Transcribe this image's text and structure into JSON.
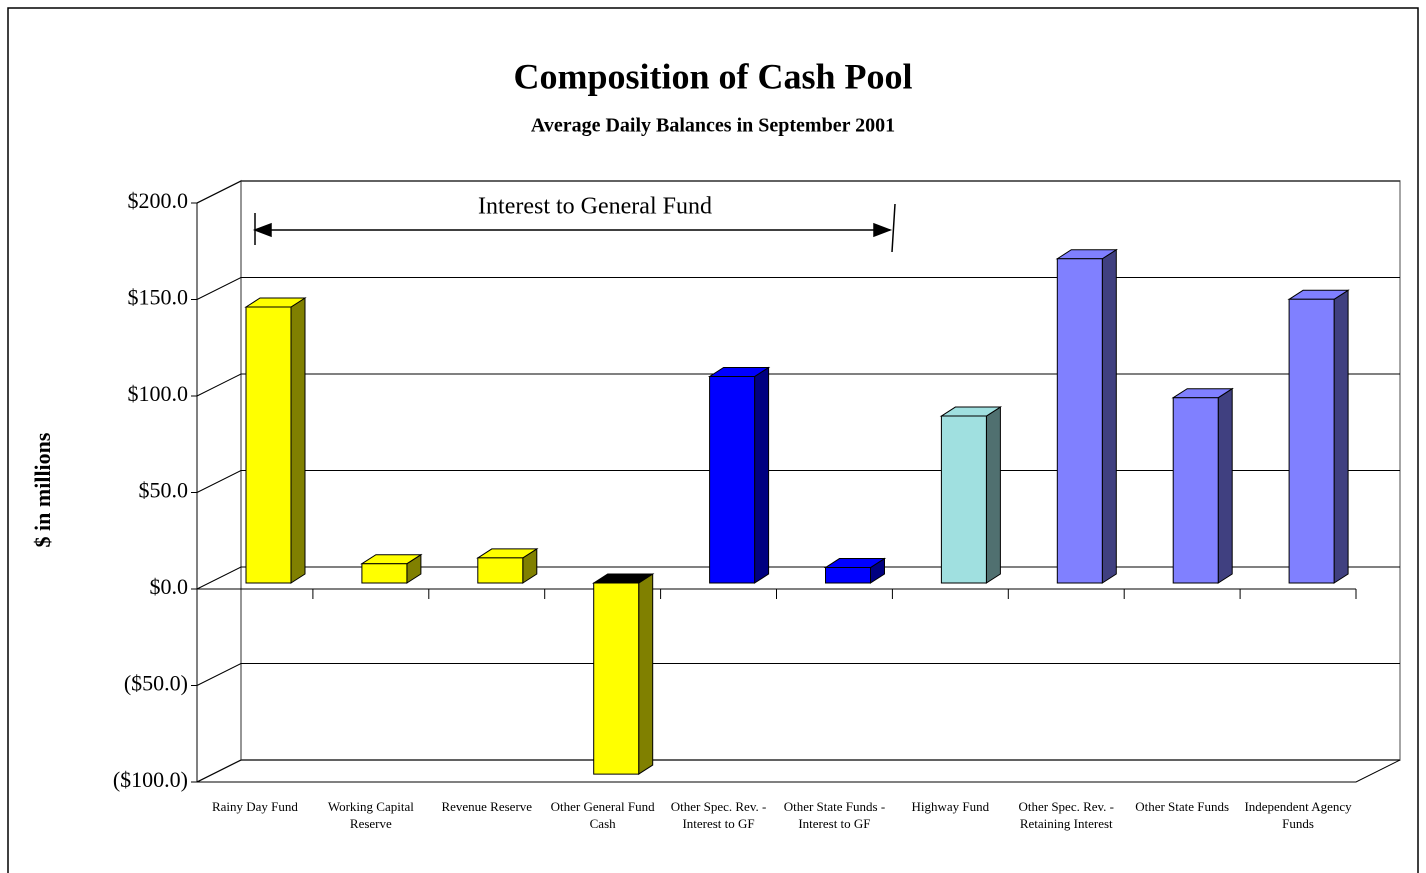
{
  "chart_data": {
    "type": "bar3d",
    "title": "Composition of Cash Pool",
    "subtitle": "Average Daily Balances in September 2001",
    "y_label": "$ in millions",
    "annotation": "Interest to General Fund",
    "categories": [
      "Rainy Day Fund",
      "Working Capital Reserve",
      "Revenue Reserve",
      "Other General Fund Cash",
      "Other Spec. Rev. - Interest to GF",
      "Other State Funds - Interest to GF",
      "Highway Fund",
      "Other Spec. Rev. - Retaining Interest",
      "Other State Funds",
      "Independent Agency Funds"
    ],
    "values": [
      143,
      10,
      13,
      -99,
      107,
      8,
      86.5,
      168,
      96,
      147
    ],
    "colors": [
      "#ffff00",
      "#ffff00",
      "#ffff00",
      "#ffff00",
      "#0000ff",
      "#0000ff",
      "#a0e0e0",
      "#8080ff",
      "#8080ff",
      "#8080ff"
    ],
    "ylim": [
      -100,
      200
    ],
    "yticks": [
      {
        "value": -100,
        "label": "($100.0)"
      },
      {
        "value": -50,
        "label": "($50.0)"
      },
      {
        "value": 0,
        "label": "$0.0"
      },
      {
        "value": 50,
        "label": "$50.0"
      },
      {
        "value": 100,
        "label": "$100.0"
      },
      {
        "value": 150,
        "label": "$150.0"
      },
      {
        "value": 200,
        "label": "$200.0"
      }
    ],
    "grid": true
  }
}
